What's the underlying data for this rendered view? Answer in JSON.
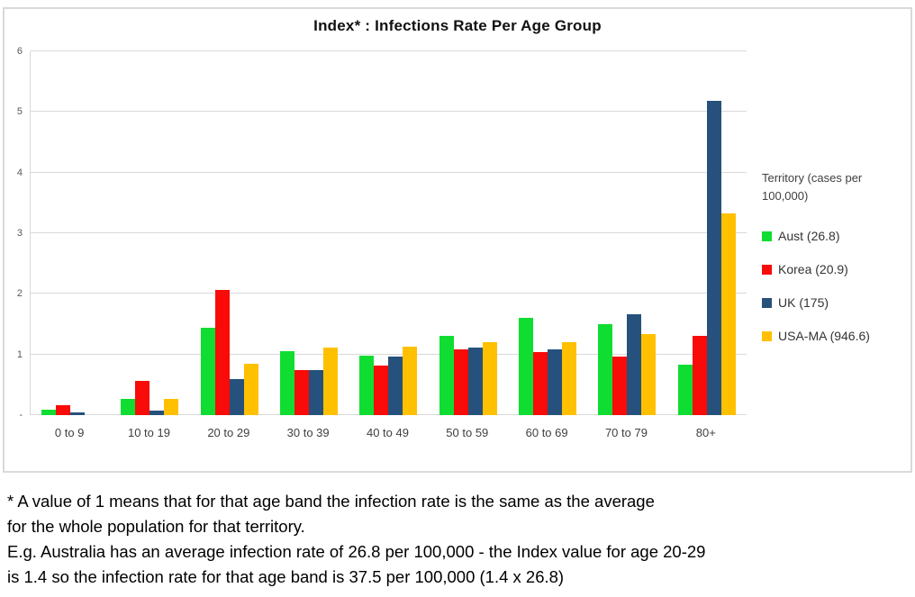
{
  "chart_data": {
    "type": "bar",
    "title": "Index* : Infections Rate Per Age Group",
    "categories": [
      "0 to 9",
      "10 to 19",
      "20 to 29",
      "30 to 39",
      "40 to 49",
      "50 to 59",
      "60 to 69",
      "70 to 79",
      "80+"
    ],
    "series": [
      {
        "name": "Aust (26.8)",
        "color": "#10dd31",
        "values": [
          0.09,
          0.26,
          1.44,
          1.06,
          0.98,
          1.31,
          1.61,
          1.5,
          0.83
        ]
      },
      {
        "name": "Korea (20.9)",
        "color": "#f80b08",
        "values": [
          0.16,
          0.57,
          2.06,
          0.74,
          0.81,
          1.08,
          1.04,
          0.96,
          1.3
        ]
      },
      {
        "name": "UK (175)",
        "color": "#25517c",
        "values": [
          0.05,
          0.07,
          0.59,
          0.74,
          0.97,
          1.12,
          1.08,
          1.67,
          5.18
        ]
      },
      {
        "name": "USA-MA (946.6)",
        "color": "#ffc000",
        "values": [
          0.0,
          0.26,
          0.84,
          1.11,
          1.13,
          1.21,
          1.2,
          1.34,
          3.33
        ]
      }
    ],
    "xlabel": "",
    "ylabel": "",
    "ylim": [
      0,
      6
    ],
    "yticks": [
      "6",
      "5",
      "4",
      "3",
      "2",
      "1",
      "-"
    ],
    "grid": true,
    "legend_title": "Territory (cases per 100,000)",
    "legend_position": "right"
  },
  "legend": {
    "title_lines": [
      "Territory (cases per",
      "100,000)"
    ]
  },
  "footnote": {
    "lines": [
      "* A value of 1 means that for that age band the infection rate is the same as the average",
      "for the whole population for that territory.",
      "E.g. Australia has an average infection rate of 26.8 per 100,000 - the Index value for age 20-29",
      "is 1.4 so the infection rate for that age band is 37.5 per 100,000 (1.4 x 26.8)"
    ]
  },
  "colors": {
    "gridline": "#d9d9d9",
    "border": "#d9d9d9",
    "tick_text": "#595959",
    "label_text": "#404040"
  }
}
